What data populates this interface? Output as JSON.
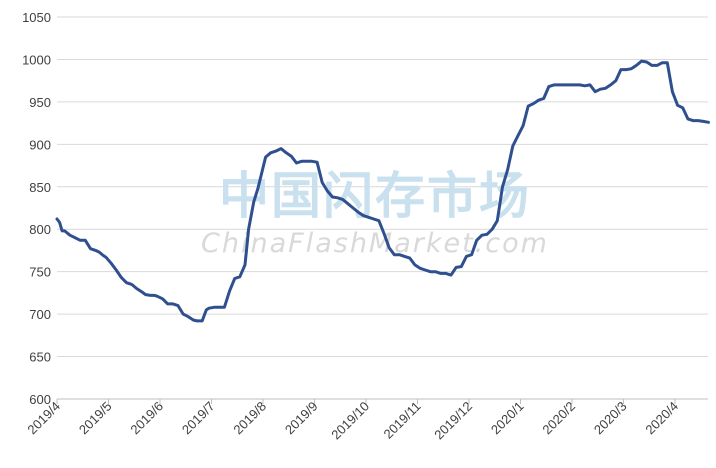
{
  "chart_data": {
    "type": "line",
    "title": "",
    "xlabel": "",
    "ylabel": "",
    "ylim": [
      600,
      1050
    ],
    "yticks": [
      600,
      650,
      700,
      750,
      800,
      850,
      900,
      950,
      1000,
      1050
    ],
    "xtick_labels": [
      "2019/4",
      "2019/5",
      "2019/6",
      "2019/7",
      "2019/8",
      "2019/9",
      "2019/10",
      "2019/11",
      "2019/12",
      "2020/1",
      "2020/2",
      "2020/3",
      "2020/4"
    ],
    "x_unit": "month index from 2019/4",
    "grid": "horizontal",
    "legend": "none",
    "line_color": "#2f4f8f",
    "series": [
      {
        "name": "",
        "x": [
          0,
          0.05,
          0.1,
          0.15,
          0.25,
          0.35,
          0.45,
          0.55,
          0.65,
          0.75,
          0.82,
          0.9,
          0.95,
          1.05,
          1.15,
          1.25,
          1.35,
          1.45,
          1.55,
          1.65,
          1.72,
          1.82,
          1.9,
          1.95,
          2.05,
          2.15,
          2.25,
          2.35,
          2.45,
          2.55,
          2.65,
          2.72,
          2.82,
          2.9,
          2.95,
          3.05,
          3.15,
          3.25,
          3.35,
          3.45,
          3.55,
          3.65,
          3.72,
          3.82,
          3.9,
          3.95,
          4.05,
          4.15,
          4.25,
          4.35,
          4.45,
          4.55,
          4.65,
          4.75,
          4.85,
          4.95,
          5.05,
          5.15,
          5.25,
          5.35,
          5.45,
          5.55,
          5.65,
          5.75,
          5.85,
          5.95,
          6.05,
          6.15,
          6.25,
          6.35,
          6.45,
          6.55,
          6.65,
          6.75,
          6.85,
          6.95,
          7.05,
          7.15,
          7.25,
          7.35,
          7.45,
          7.55,
          7.65,
          7.75,
          7.85,
          7.95,
          8.05,
          8.15,
          8.25,
          8.35,
          8.45,
          8.55,
          8.65,
          8.75,
          8.85,
          8.95,
          9.05,
          9.15,
          9.25,
          9.35,
          9.45,
          9.55,
          9.65,
          9.75,
          9.85,
          9.95,
          10.05,
          10.15,
          10.25,
          10.35,
          10.45,
          10.55,
          10.65,
          10.75,
          10.85,
          10.95,
          11.05,
          11.15,
          11.25,
          11.35,
          11.45,
          11.55,
          11.65,
          11.75,
          11.85,
          11.95,
          12.05,
          12.15,
          12.25,
          12.35,
          12.45,
          12.55,
          12.65
        ],
        "values": [
          812,
          808,
          798,
          798,
          793,
          790,
          787,
          787,
          777,
          775,
          773,
          769,
          767,
          760,
          752,
          743,
          737,
          735,
          730,
          726,
          723,
          722,
          722,
          721,
          718,
          712,
          712,
          710,
          700,
          697,
          693,
          692,
          692,
          705,
          707,
          708,
          708,
          708,
          727,
          742,
          744,
          758,
          800,
          832,
          848,
          860,
          885,
          890,
          892,
          895,
          890,
          886,
          878,
          880,
          880,
          880,
          879,
          855,
          845,
          838,
          837,
          835,
          830,
          825,
          820,
          816,
          814,
          812,
          810,
          795,
          778,
          770,
          770,
          768,
          766,
          758,
          754,
          752,
          750,
          750,
          748,
          748,
          746,
          755,
          756,
          768,
          770,
          787,
          793,
          794,
          800,
          810,
          850,
          870,
          898,
          910,
          922,
          945,
          948,
          952,
          954,
          968,
          970,
          970,
          970,
          970,
          970,
          970,
          969,
          970,
          962,
          965,
          966,
          970,
          975,
          988,
          988,
          989,
          993,
          998,
          997,
          993,
          993,
          996,
          996,
          962,
          946,
          943,
          930,
          928,
          928,
          927,
          926
        ]
      }
    ]
  },
  "watermark": {
    "cn": "中国闪存市场",
    "en": "ChinaFlashMarket.com"
  }
}
